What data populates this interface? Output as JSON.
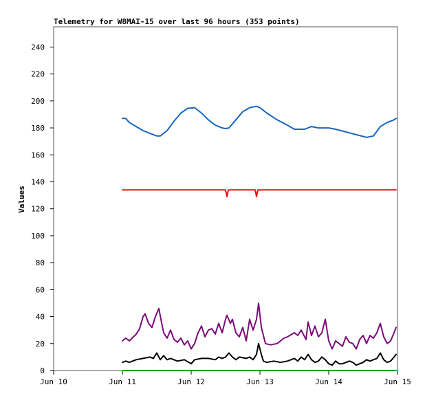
{
  "chart_data": {
    "type": "line",
    "title": "Telemetry for W8MAI-15 over last 96 hours (353 points)",
    "xlabel": "",
    "ylabel": "Values",
    "x_ticks": [
      "Jun 10",
      "Jun 11",
      "Jun 12",
      "Jun 13",
      "Jun 14",
      "Jun 15"
    ],
    "xlim_days": [
      10,
      15
    ],
    "ylim": [
      0,
      255
    ],
    "y_ticks": [
      0,
      20,
      40,
      60,
      80,
      100,
      120,
      140,
      160,
      180,
      200,
      220,
      240
    ],
    "grid": false,
    "legend": "none",
    "series": [
      {
        "color": "#1565c0",
        "points": [
          [
            11.0,
            187
          ],
          [
            11.05,
            187
          ],
          [
            11.1,
            184
          ],
          [
            11.2,
            181
          ],
          [
            11.3,
            178
          ],
          [
            11.4,
            176
          ],
          [
            11.5,
            174
          ],
          [
            11.55,
            174
          ],
          [
            11.65,
            178
          ],
          [
            11.75,
            185
          ],
          [
            11.85,
            191
          ],
          [
            11.95,
            194.5
          ],
          [
            12.05,
            195
          ],
          [
            12.15,
            191
          ],
          [
            12.25,
            186
          ],
          [
            12.35,
            182
          ],
          [
            12.45,
            180
          ],
          [
            12.5,
            179.5
          ],
          [
            12.55,
            180
          ],
          [
            12.65,
            186
          ],
          [
            12.75,
            192
          ],
          [
            12.85,
            195
          ],
          [
            12.95,
            196
          ],
          [
            13.0,
            195
          ],
          [
            13.1,
            191
          ],
          [
            13.25,
            186
          ],
          [
            13.4,
            182
          ],
          [
            13.5,
            179
          ],
          [
            13.65,
            179
          ],
          [
            13.75,
            181
          ],
          [
            13.85,
            180
          ],
          [
            14.0,
            180
          ],
          [
            14.1,
            179
          ],
          [
            14.25,
            177
          ],
          [
            14.4,
            175
          ],
          [
            14.55,
            173
          ],
          [
            14.65,
            174
          ],
          [
            14.75,
            181
          ],
          [
            14.85,
            184
          ],
          [
            14.95,
            186
          ],
          [
            14.98,
            187
          ]
        ]
      },
      {
        "color": "#e81010",
        "points": [
          [
            11.0,
            134
          ],
          [
            12.5,
            134
          ],
          [
            12.52,
            129
          ],
          [
            12.54,
            134
          ],
          [
            12.93,
            134
          ],
          [
            12.95,
            129
          ],
          [
            12.97,
            134
          ],
          [
            14.98,
            134
          ]
        ]
      },
      {
        "color": "#7a0a7a",
        "points": [
          [
            11.0,
            22
          ],
          [
            11.05,
            24
          ],
          [
            11.1,
            22
          ],
          [
            11.2,
            27
          ],
          [
            11.25,
            31
          ],
          [
            11.3,
            40
          ],
          [
            11.33,
            42
          ],
          [
            11.38,
            35
          ],
          [
            11.43,
            32
          ],
          [
            11.48,
            40
          ],
          [
            11.53,
            46
          ],
          [
            11.56,
            38
          ],
          [
            11.6,
            28
          ],
          [
            11.65,
            24
          ],
          [
            11.7,
            30
          ],
          [
            11.75,
            23
          ],
          [
            11.8,
            21
          ],
          [
            11.85,
            24
          ],
          [
            11.9,
            19
          ],
          [
            11.95,
            22
          ],
          [
            12.0,
            16
          ],
          [
            12.05,
            20
          ],
          [
            12.1,
            28
          ],
          [
            12.15,
            33
          ],
          [
            12.2,
            25
          ],
          [
            12.25,
            30
          ],
          [
            12.3,
            31
          ],
          [
            12.35,
            27
          ],
          [
            12.4,
            35
          ],
          [
            12.45,
            28
          ],
          [
            12.5,
            38
          ],
          [
            12.52,
            41
          ],
          [
            12.57,
            35
          ],
          [
            12.6,
            38
          ],
          [
            12.65,
            28
          ],
          [
            12.7,
            25
          ],
          [
            12.75,
            32
          ],
          [
            12.8,
            22
          ],
          [
            12.85,
            38
          ],
          [
            12.9,
            30
          ],
          [
            12.95,
            38
          ],
          [
            12.98,
            50
          ],
          [
            13.02,
            32
          ],
          [
            13.08,
            20
          ],
          [
            13.15,
            19
          ],
          [
            13.25,
            20
          ],
          [
            13.35,
            24
          ],
          [
            13.4,
            25
          ],
          [
            13.5,
            28
          ],
          [
            13.55,
            26
          ],
          [
            13.6,
            30
          ],
          [
            13.67,
            23
          ],
          [
            13.7,
            36
          ],
          [
            13.75,
            26
          ],
          [
            13.8,
            33
          ],
          [
            13.85,
            25
          ],
          [
            13.9,
            28
          ],
          [
            13.95,
            38
          ],
          [
            14.0,
            22
          ],
          [
            14.05,
            16
          ],
          [
            14.1,
            22
          ],
          [
            14.15,
            20
          ],
          [
            14.2,
            18
          ],
          [
            14.25,
            25
          ],
          [
            14.3,
            21
          ],
          [
            14.35,
            20
          ],
          [
            14.4,
            16
          ],
          [
            14.45,
            23
          ],
          [
            14.5,
            26
          ],
          [
            14.55,
            20
          ],
          [
            14.6,
            26
          ],
          [
            14.65,
            24
          ],
          [
            14.7,
            28
          ],
          [
            14.75,
            35
          ],
          [
            14.8,
            25
          ],
          [
            14.85,
            20
          ],
          [
            14.9,
            22
          ],
          [
            14.95,
            28
          ],
          [
            14.98,
            32
          ]
        ]
      },
      {
        "color": "#000000",
        "points": [
          [
            11.0,
            6
          ],
          [
            11.05,
            7
          ],
          [
            11.1,
            6
          ],
          [
            11.2,
            8
          ],
          [
            11.3,
            9
          ],
          [
            11.4,
            10
          ],
          [
            11.45,
            9
          ],
          [
            11.5,
            13
          ],
          [
            11.55,
            8
          ],
          [
            11.6,
            11
          ],
          [
            11.65,
            8
          ],
          [
            11.7,
            9
          ],
          [
            11.8,
            7
          ],
          [
            11.9,
            8
          ],
          [
            12.0,
            5
          ],
          [
            12.05,
            8
          ],
          [
            12.15,
            9
          ],
          [
            12.25,
            9
          ],
          [
            12.35,
            8
          ],
          [
            12.4,
            10
          ],
          [
            12.45,
            9
          ],
          [
            12.5,
            10
          ],
          [
            12.55,
            13
          ],
          [
            12.6,
            10
          ],
          [
            12.65,
            8
          ],
          [
            12.7,
            10
          ],
          [
            12.8,
            9
          ],
          [
            12.85,
            10
          ],
          [
            12.9,
            8
          ],
          [
            12.95,
            12
          ],
          [
            12.98,
            20
          ],
          [
            13.02,
            12
          ],
          [
            13.05,
            7
          ],
          [
            13.1,
            6
          ],
          [
            13.2,
            7
          ],
          [
            13.3,
            6
          ],
          [
            13.4,
            7
          ],
          [
            13.5,
            9
          ],
          [
            13.55,
            7
          ],
          [
            13.6,
            10
          ],
          [
            13.65,
            8
          ],
          [
            13.7,
            12
          ],
          [
            13.75,
            8
          ],
          [
            13.8,
            6
          ],
          [
            13.85,
            7
          ],
          [
            13.9,
            10
          ],
          [
            13.95,
            8
          ],
          [
            14.0,
            5
          ],
          [
            14.05,
            4
          ],
          [
            14.1,
            7
          ],
          [
            14.15,
            5
          ],
          [
            14.2,
            5
          ],
          [
            14.3,
            7
          ],
          [
            14.35,
            6
          ],
          [
            14.4,
            4
          ],
          [
            14.5,
            6
          ],
          [
            14.55,
            8
          ],
          [
            14.6,
            7
          ],
          [
            14.65,
            8
          ],
          [
            14.7,
            9
          ],
          [
            14.75,
            13
          ],
          [
            14.8,
            8
          ],
          [
            14.85,
            6
          ],
          [
            14.9,
            7
          ],
          [
            14.95,
            10
          ],
          [
            14.98,
            12
          ]
        ]
      },
      {
        "color": "#10a010",
        "points": [
          [
            11.0,
            0
          ],
          [
            14.98,
            0
          ]
        ]
      }
    ]
  }
}
